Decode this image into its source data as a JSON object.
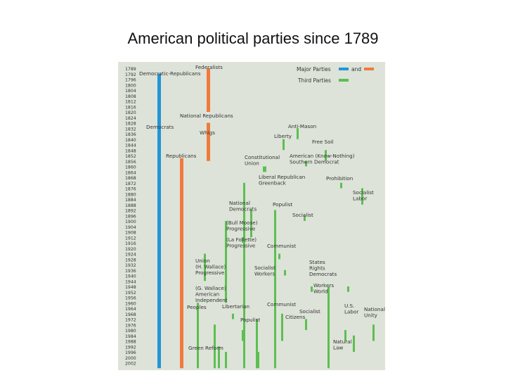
{
  "slide": {
    "title": "American political parties since 1789"
  },
  "colors": {
    "background": "#dde3d8",
    "major": "#f07a3c",
    "major_blue": "#2196d6",
    "third": "#5cbf52",
    "text": "#333333"
  },
  "legend": {
    "major_label": "Major Parties",
    "and": "and",
    "third_label": "Third Parties"
  },
  "years": [
    "1789",
    "1792",
    "1796",
    "1800",
    "1804",
    "1808",
    "1812",
    "1816",
    "1820",
    "1824",
    "1828",
    "1832",
    "1836",
    "1840",
    "1844",
    "1848",
    "1852",
    "1856",
    "1860",
    "1864",
    "1868",
    "1872",
    "1876",
    "1880",
    "1884",
    "1888",
    "1892",
    "1896",
    "1900",
    "1904",
    "1908",
    "1912",
    "1916",
    "1920",
    "1924",
    "1928",
    "1932",
    "1936",
    "1940",
    "1944",
    "1948",
    "1952",
    "1956",
    "1960",
    "1964",
    "1968",
    "1972",
    "1976",
    "1980",
    "1984",
    "1988",
    "1992",
    "1996",
    "2000",
    "2002"
  ],
  "chart_data": {
    "type": "timeline",
    "parties": [
      {
        "name": "Democratic-Republicans",
        "kind": "major-blue",
        "start": 1792,
        "end": 1828
      },
      {
        "name": "Democrats",
        "kind": "major-blue",
        "start": 1828,
        "end": 2002
      },
      {
        "name": "Federalists",
        "kind": "major",
        "start": 1789,
        "end": 1816
      },
      {
        "name": "National Republicans",
        "kind": "major",
        "start": 1828,
        "end": 1832
      },
      {
        "name": "Whigs",
        "kind": "major",
        "start": 1836,
        "end": 1852
      },
      {
        "name": "Republicans",
        "kind": "major",
        "start": 1854,
        "end": 2002
      },
      {
        "name": "Anti-Mason",
        "kind": "third",
        "start": 1832,
        "end": 1836
      },
      {
        "name": "Liberty",
        "kind": "third",
        "start": 1840,
        "end": 1844
      },
      {
        "name": "Free Soil",
        "kind": "third",
        "start": 1848,
        "end": 1852
      },
      {
        "name": "Constitutional Union",
        "kind": "third",
        "start": 1860,
        "end": 1860
      },
      {
        "name": "American (Know-Nothing)",
        "kind": "third",
        "start": 1856,
        "end": 1856
      },
      {
        "name": "Southern Democrat",
        "kind": "third",
        "start": 1860,
        "end": 1860
      },
      {
        "name": "Liberal Republican",
        "kind": "third",
        "start": 1872,
        "end": 1872
      },
      {
        "name": "Greenback",
        "kind": "third",
        "start": 1876,
        "end": 1884
      },
      {
        "name": "Prohibition",
        "kind": "third",
        "start": 1872,
        "end": 2002
      },
      {
        "name": "Socialist Labor",
        "kind": "third",
        "start": 1892,
        "end": 2002
      },
      {
        "name": "National Democrats",
        "kind": "third",
        "start": 1896,
        "end": 1896
      },
      {
        "name": "Populist",
        "kind": "third",
        "start": 1892,
        "end": 1908
      },
      {
        "name": "Socialist",
        "kind": "third",
        "start": 1900,
        "end": 1956
      },
      {
        "name": "Progressive (Bull Moose)",
        "kind": "third",
        "start": 1912,
        "end": 1912
      },
      {
        "name": "Progressive (La Follette)",
        "kind": "third",
        "start": 1924,
        "end": 1924
      },
      {
        "name": "Communist",
        "kind": "third",
        "start": 1924,
        "end": 1940
      },
      {
        "name": "Union",
        "kind": "third",
        "start": 1936,
        "end": 1936
      },
      {
        "name": "Progressive (H. Wallace)",
        "kind": "third",
        "start": 1948,
        "end": 1948
      },
      {
        "name": "Socialist Workers",
        "kind": "third",
        "start": 1948,
        "end": 2002
      },
      {
        "name": "States Rights Democrats",
        "kind": "third",
        "start": 1948,
        "end": 1948
      },
      {
        "name": "Workers World",
        "kind": "third",
        "start": 1960,
        "end": 2002
      },
      {
        "name": "American Independent",
        "kind": "third",
        "start": 1968,
        "end": 1968
      },
      {
        "name": "Peoples",
        "kind": "third",
        "start": 1972,
        "end": 1976
      },
      {
        "name": "Libertarian",
        "kind": "third",
        "start": 1972,
        "end": 2002
      },
      {
        "name": "Communist",
        "kind": "third",
        "start": 1968,
        "end": 1984
      },
      {
        "name": "Socialist",
        "kind": "third",
        "start": 1976,
        "end": 2002
      },
      {
        "name": "Citizens",
        "kind": "third",
        "start": 1980,
        "end": 1984
      },
      {
        "name": "Populist",
        "kind": "third",
        "start": 1984,
        "end": 1992
      },
      {
        "name": "U.S. Labor",
        "kind": "third",
        "start": 1976,
        "end": 1984
      },
      {
        "name": "National Unity",
        "kind": "third",
        "start": 1980,
        "end": 1984
      },
      {
        "name": "Natural Law",
        "kind": "third",
        "start": 1992,
        "end": 2002
      },
      {
        "name": "Green",
        "kind": "third",
        "start": 1996,
        "end": 2002
      },
      {
        "name": "Reform",
        "kind": "third",
        "start": 1996,
        "end": 2002
      }
    ]
  },
  "labels": [
    {
      "id": "federalists",
      "lines": [
        "Federalists"
      ]
    },
    {
      "id": "dem-rep",
      "lines": [
        "Democratic-Republicans"
      ]
    },
    {
      "id": "nat-rep",
      "lines": [
        "National Republicans"
      ]
    },
    {
      "id": "democrats",
      "lines": [
        "Democrats"
      ]
    },
    {
      "id": "whigs",
      "lines": [
        "Whigs"
      ]
    },
    {
      "id": "republicans",
      "lines": [
        "Republicans"
      ]
    },
    {
      "id": "anti-mason",
      "lines": [
        "Anti-Mason"
      ]
    },
    {
      "id": "liberty",
      "lines": [
        "Liberty"
      ]
    },
    {
      "id": "free-soil",
      "lines": [
        "Free Soil"
      ]
    },
    {
      "id": "const-union",
      "lines": [
        "Constitutional",
        "Union"
      ]
    },
    {
      "id": "american",
      "lines": [
        "American (Know-Nothing)",
        "Southern Democrat"
      ]
    },
    {
      "id": "lib-rep",
      "lines": [
        "Liberal Republican",
        "Greenback"
      ]
    },
    {
      "id": "prohibition",
      "lines": [
        "Prohibition"
      ]
    },
    {
      "id": "soc-labor",
      "lines": [
        "Socialist",
        "Labor"
      ]
    },
    {
      "id": "nat-dem",
      "lines": [
        "National",
        "Democrats"
      ]
    },
    {
      "id": "populist",
      "lines": [
        "Populist"
      ]
    },
    {
      "id": "socialist",
      "lines": [
        "Socialist"
      ]
    },
    {
      "id": "bull-moose",
      "lines": [
        "(Bull Moose)",
        "Progressive"
      ]
    },
    {
      "id": "la-follette",
      "lines": [
        "(La Follette)",
        "Progressive"
      ]
    },
    {
      "id": "communist",
      "lines": [
        "Communist"
      ]
    },
    {
      "id": "union",
      "lines": [
        "Union",
        "(H. Wallace)",
        "Progressive"
      ]
    },
    {
      "id": "soc-workers",
      "lines": [
        "Socialist",
        "Workers"
      ]
    },
    {
      "id": "states-rights",
      "lines": [
        "States",
        "Rights",
        "Democrats"
      ]
    },
    {
      "id": "workers-world",
      "lines": [
        "Workers",
        "World"
      ]
    },
    {
      "id": "g-wallace",
      "lines": [
        "(G. Wallace)",
        "American",
        "Independent"
      ]
    },
    {
      "id": "peoples",
      "lines": [
        "Peoples"
      ]
    },
    {
      "id": "libertarian",
      "lines": [
        "Libertarian"
      ]
    },
    {
      "id": "communist-2",
      "lines": [
        "Communist"
      ]
    },
    {
      "id": "socialist-2",
      "lines": [
        "Socialist"
      ]
    },
    {
      "id": "citizens",
      "lines": [
        "Citizens"
      ]
    },
    {
      "id": "populist-2",
      "lines": [
        "Populist"
      ]
    },
    {
      "id": "us-labor",
      "lines": [
        "U.S.",
        "Labor"
      ]
    },
    {
      "id": "nat-unity",
      "lines": [
        "National",
        "Unity"
      ]
    },
    {
      "id": "natural-law",
      "lines": [
        "Natural",
        "Law"
      ]
    },
    {
      "id": "green-reform",
      "lines": [
        "Green  Reform"
      ]
    }
  ]
}
